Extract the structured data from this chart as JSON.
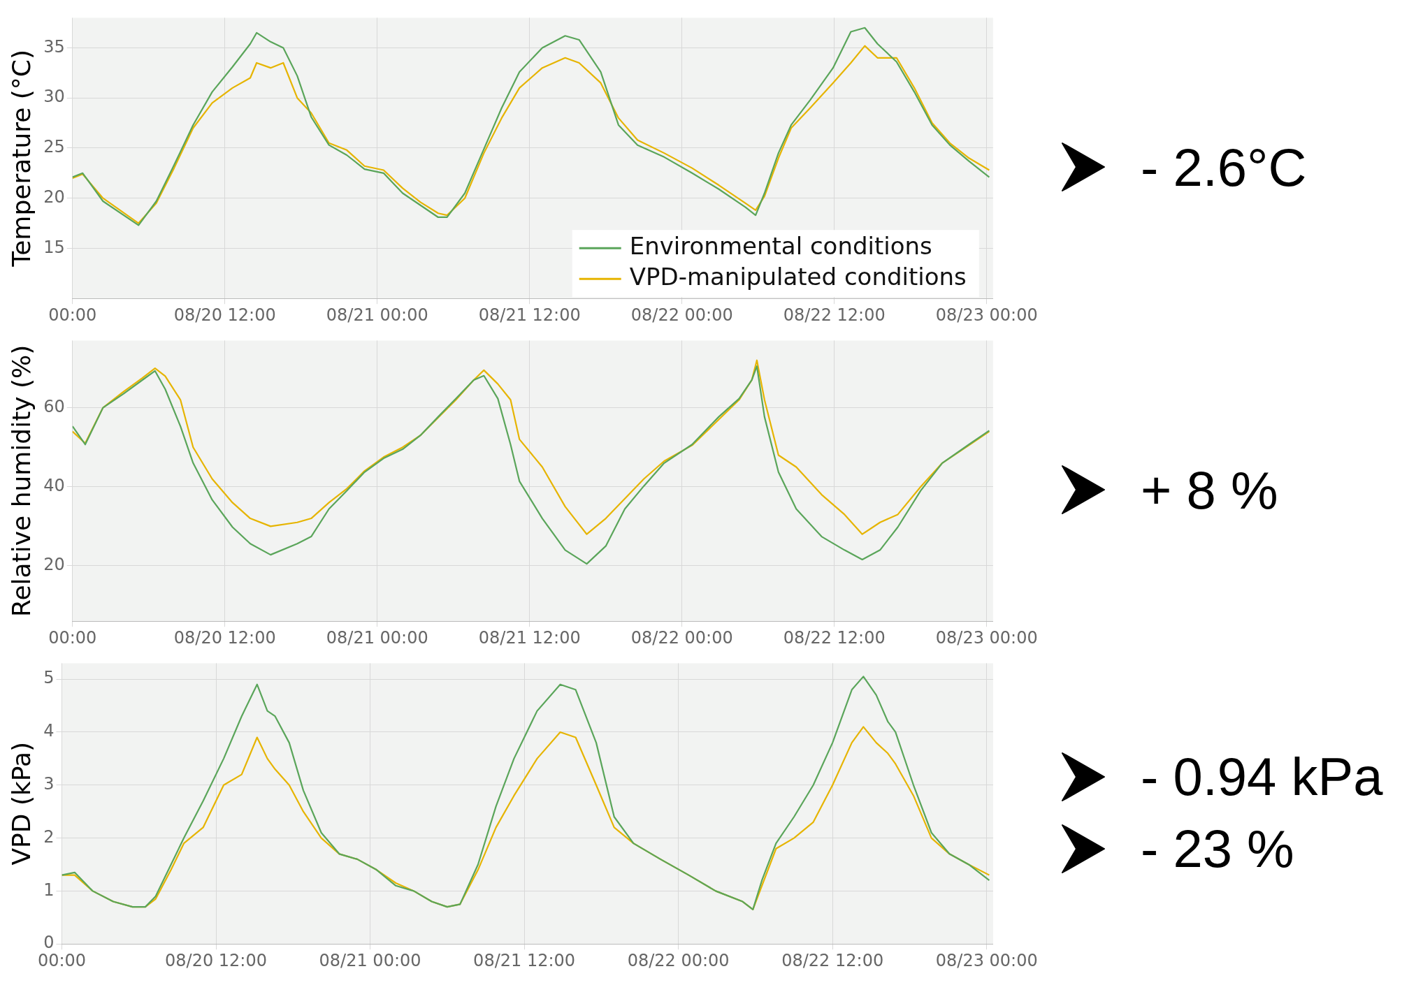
{
  "chart_data": [
    {
      "type": "line",
      "ylabel": "Temperature (°C)",
      "legend": "bottom right",
      "grid": true,
      "marker": "none",
      "line_style": "solid",
      "annotations": [
        "- 2.6°C"
      ],
      "x": [
        "--08-20T00:00",
        "--08-20T00:48",
        "--08-20T02:24",
        "--08-20T05:12",
        "--08-20T06:36",
        "--08-20T08:00",
        "--08-20T09:30",
        "--08-20T11:00",
        "--08-20T12:36",
        "--08-20T14:00",
        "--08-20T14:30",
        "--08-20T15:36",
        "--08-20T16:36",
        "--08-20T17:42",
        "--08-20T18:48",
        "--08-20T20:12",
        "--08-20T21:36",
        "--08-20T23:00",
        "--08-21T00:30",
        "--08-21T02:00",
        "--08-21T03:24",
        "--08-21T04:48",
        "--08-21T05:30",
        "--08-21T06:54",
        "--08-21T08:24",
        "--08-21T09:48",
        "--08-21T11:12",
        "--08-21T13:00",
        "--08-21T14:48",
        "--08-21T15:54",
        "--08-21T17:36",
        "--08-21T19:00",
        "--08-21T20:30",
        "--08-21T22:36",
        "--08-22T00:48",
        "--08-22T02:54",
        "--08-22T05:00",
        "--08-22T05:48",
        "--08-22T06:30",
        "--08-22T07:36",
        "--08-22T08:36",
        "--08-22T10:06",
        "--08-22T11:54",
        "--08-22T13:18",
        "--08-22T14:24",
        "--08-22T15:24",
        "--08-22T16:54",
        "--08-22T18:18",
        "--08-22T19:42",
        "--08-22T21:06",
        "--08-22T22:36",
        "--08-23T00:12"
      ],
      "xlim": [
        "--08-20T00:00",
        "--08-23T00:30"
      ],
      "xticks": [
        {
          "value": "--08-20T00:00",
          "label": "00:00"
        },
        {
          "value": "--08-20T12:00",
          "label": "08/20 12:00"
        },
        {
          "value": "--08-21T00:00",
          "label": "08/21 00:00"
        },
        {
          "value": "--08-21T12:00",
          "label": "08/21 12:00"
        },
        {
          "value": "--08-22T00:00",
          "label": "08/22 00:00"
        },
        {
          "value": "--08-22T12:00",
          "label": "08/22 12:00"
        },
        {
          "value": "--08-23T00:00",
          "label": "08/23 00:00"
        }
      ],
      "ylim": [
        10,
        38
      ],
      "yticks": [
        15,
        20,
        25,
        30,
        35
      ],
      "series": [
        {
          "name": "Environmental conditions",
          "color": "#5aa55a",
          "values": [
            22.1,
            22.5,
            19.7,
            17.3,
            19.7,
            23.3,
            27.3,
            30.6,
            33.1,
            35.4,
            36.5,
            35.6,
            35.0,
            32.2,
            28.1,
            25.3,
            24.3,
            22.9,
            22.5,
            20.5,
            19.3,
            18.1,
            18.1,
            20.5,
            24.9,
            29.0,
            32.6,
            35.0,
            36.2,
            35.8,
            32.6,
            27.3,
            25.3,
            24.1,
            22.5,
            20.9,
            19.1,
            18.3,
            20.5,
            24.5,
            27.3,
            29.8,
            33.0,
            36.6,
            37.0,
            35.4,
            33.6,
            30.6,
            27.3,
            25.3,
            23.7,
            22.1
          ]
        },
        {
          "name": "VPD-manipulated conditions",
          "color": "#e6b400",
          "values": [
            22.0,
            22.4,
            20.0,
            17.5,
            19.5,
            23.0,
            27.0,
            29.5,
            31.0,
            32.0,
            33.5,
            33.0,
            33.5,
            30.0,
            28.5,
            25.5,
            24.8,
            23.2,
            22.8,
            21.0,
            19.6,
            18.5,
            18.3,
            20.0,
            24.5,
            28.0,
            31.0,
            33.0,
            34.0,
            33.5,
            31.5,
            28.0,
            25.8,
            24.5,
            23.0,
            21.3,
            19.5,
            18.8,
            20.2,
            24.0,
            27.0,
            29.0,
            31.5,
            33.5,
            35.2,
            34.0,
            34.0,
            31.0,
            27.5,
            25.5,
            24.0,
            22.8
          ]
        }
      ]
    },
    {
      "type": "line",
      "ylabel": "Relative humidity (%)",
      "grid": true,
      "marker": "none",
      "line_style": "solid",
      "annotations": [
        "+ 8 %"
      ],
      "x": [
        "--08-20T00:00",
        "--08-20T01:00",
        "--08-20T02:24",
        "--08-20T04:00",
        "--08-20T05:30",
        "--08-20T06:30",
        "--08-20T07:18",
        "--08-20T08:30",
        "--08-20T09:30",
        "--08-20T11:00",
        "--08-20T12:36",
        "--08-20T14:00",
        "--08-20T15:36",
        "--08-20T17:42",
        "--08-20T18:48",
        "--08-20T20:12",
        "--08-20T21:36",
        "--08-20T23:00",
        "--08-21T00:30",
        "--08-21T02:00",
        "--08-21T03:24",
        "--08-21T04:48",
        "--08-21T06:12",
        "--08-21T07:36",
        "--08-21T08:24",
        "--08-21T09:30",
        "--08-21T10:30",
        "--08-21T11:12",
        "--08-21T13:00",
        "--08-21T14:48",
        "--08-21T16:30",
        "--08-21T18:00",
        "--08-21T19:30",
        "--08-21T21:00",
        "--08-21T22:36",
        "--08-22T00:48",
        "--08-22T02:54",
        "--08-22T04:30",
        "--08-22T05:30",
        "--08-22T05:54",
        "--08-22T06:30",
        "--08-22T07:36",
        "--08-22T09:00",
        "--08-22T11:00",
        "--08-22T12:48",
        "--08-22T14:12",
        "--08-22T15:36",
        "--08-22T17:00",
        "--08-22T18:48",
        "--08-22T20:30",
        "--08-22T22:36",
        "--08-23T00:12"
      ],
      "xlim": [
        "--08-20T00:00",
        "--08-23T00:30"
      ],
      "xticks": [
        {
          "value": "--08-20T00:00",
          "label": "00:00"
        },
        {
          "value": "--08-20T12:00",
          "label": "08/20 12:00"
        },
        {
          "value": "--08-21T00:00",
          "label": "08/21 00:00"
        },
        {
          "value": "--08-21T12:00",
          "label": "08/21 12:00"
        },
        {
          "value": "--08-22T00:00",
          "label": "08/22 00:00"
        },
        {
          "value": "--08-22T12:00",
          "label": "08/22 12:00"
        },
        {
          "value": "--08-23T00:00",
          "label": "08/23 00:00"
        }
      ],
      "ylim": [
        6,
        77
      ],
      "yticks": [
        20,
        40,
        60
      ],
      "series": [
        {
          "color": "#5aa55a",
          "values": [
            55.3,
            50.7,
            60,
            63.5,
            67,
            69.3,
            64.7,
            55.3,
            46,
            36.7,
            29.8,
            25.6,
            22.8,
            25.6,
            27.4,
            34.4,
            39,
            43.7,
            47.2,
            49.5,
            53,
            57.7,
            62.3,
            67,
            68.1,
            62.3,
            50.7,
            41.4,
            32,
            24,
            20.5,
            25,
            34.4,
            40.2,
            46,
            50.7,
            57.7,
            62.3,
            67,
            70.5,
            57.7,
            43.7,
            34.4,
            27.4,
            24,
            21.6,
            24,
            29.8,
            39,
            46,
            50.7,
            54.2
          ]
        },
        {
          "color": "#e6b400",
          "values": [
            54,
            51,
            60,
            64,
            67.5,
            70,
            68,
            62,
            50,
            42,
            36,
            32,
            30,
            31,
            32,
            36,
            39.5,
            44,
            47.5,
            50,
            53,
            57.5,
            62,
            67,
            69.5,
            66,
            62,
            52,
            45,
            35,
            28,
            32,
            37,
            42,
            46.5,
            50.5,
            57,
            62,
            67,
            72,
            62,
            48,
            45,
            38,
            33,
            28,
            31,
            33,
            40,
            46,
            50.5,
            54
          ]
        }
      ]
    },
    {
      "type": "line",
      "ylabel": "VPD (kPa)",
      "grid": true,
      "marker": "none",
      "line_style": "solid",
      "annotations": [
        "- 0.94 kPa",
        "- 23 %"
      ],
      "x": [
        "--08-20T00:00",
        "--08-20T01:00",
        "--08-20T02:24",
        "--08-20T04:00",
        "--08-20T05:30",
        "--08-20T06:30",
        "--08-20T07:18",
        "--08-20T08:30",
        "--08-20T09:30",
        "--08-20T11:00",
        "--08-20T12:36",
        "--08-20T14:00",
        "--08-20T15:12",
        "--08-20T16:00",
        "--08-20T16:36",
        "--08-20T17:42",
        "--08-20T18:48",
        "--08-20T20:12",
        "--08-20T21:36",
        "--08-20T23:00",
        "--08-21T00:30",
        "--08-21T02:00",
        "--08-21T03:24",
        "--08-21T04:48",
        "--08-21T06:00",
        "--08-21T07:00",
        "--08-21T08:24",
        "--08-21T09:48",
        "--08-21T11:12",
        "--08-21T13:00",
        "--08-21T14:48",
        "--08-21T16:00",
        "--08-21T17:36",
        "--08-21T19:00",
        "--08-21T20:30",
        "--08-21T22:36",
        "--08-22T00:48",
        "--08-22T02:54",
        "--08-22T05:00",
        "--08-22T05:48",
        "--08-22T06:30",
        "--08-22T07:36",
        "--08-22T09:00",
        "--08-22T10:30",
        "--08-22T12:00",
        "--08-22T13:30",
        "--08-22T14:24",
        "--08-22T15:24",
        "--08-22T16:18",
        "--08-22T16:54",
        "--08-22T18:18",
        "--08-22T19:42",
        "--08-22T21:06",
        "--08-22T22:36",
        "--08-23T00:12"
      ],
      "xlim": [
        "--08-20T00:00",
        "--08-23T00:30"
      ],
      "xticks": [
        {
          "value": "--08-20T00:00",
          "label": "00:00"
        },
        {
          "value": "--08-20T12:00",
          "label": "08/20 12:00"
        },
        {
          "value": "--08-21T00:00",
          "label": "08/21 00:00"
        },
        {
          "value": "--08-21T12:00",
          "label": "08/21 12:00"
        },
        {
          "value": "--08-22T00:00",
          "label": "08/22 00:00"
        },
        {
          "value": "--08-22T12:00",
          "label": "08/22 12:00"
        },
        {
          "value": "--08-23T00:00",
          "label": "08/23 00:00"
        }
      ],
      "ylim": [
        0,
        5.3
      ],
      "yticks": [
        0,
        1,
        2,
        3,
        4,
        5
      ],
      "series": [
        {
          "color": "#5aa55a",
          "values": [
            1.3,
            1.35,
            1.0,
            0.8,
            0.7,
            0.7,
            0.9,
            1.5,
            2.0,
            2.7,
            3.5,
            4.3,
            4.9,
            4.4,
            4.3,
            3.8,
            2.9,
            2.1,
            1.7,
            1.6,
            1.4,
            1.1,
            1.0,
            0.8,
            0.7,
            0.75,
            1.5,
            2.6,
            3.5,
            4.4,
            4.9,
            4.8,
            3.8,
            2.4,
            1.9,
            1.6,
            1.3,
            1.0,
            0.8,
            0.65,
            1.2,
            1.9,
            2.4,
            3.0,
            3.8,
            4.8,
            5.05,
            4.7,
            4.2,
            4.0,
            3.0,
            2.1,
            1.7,
            1.5,
            1.2
          ]
        },
        {
          "color": "#e6b400",
          "values": [
            1.3,
            1.3,
            1.0,
            0.8,
            0.7,
            0.7,
            0.85,
            1.4,
            1.9,
            2.2,
            3.0,
            3.2,
            3.9,
            3.5,
            3.3,
            3.0,
            2.5,
            2.0,
            1.7,
            1.6,
            1.4,
            1.15,
            1.0,
            0.8,
            0.7,
            0.75,
            1.4,
            2.2,
            2.8,
            3.5,
            4.0,
            3.9,
            3.0,
            2.2,
            1.9,
            1.6,
            1.3,
            1.0,
            0.8,
            0.65,
            1.1,
            1.8,
            2.0,
            2.3,
            3.0,
            3.8,
            4.1,
            3.8,
            3.6,
            3.4,
            2.8,
            2.0,
            1.7,
            1.5,
            1.3
          ]
        }
      ]
    }
  ]
}
